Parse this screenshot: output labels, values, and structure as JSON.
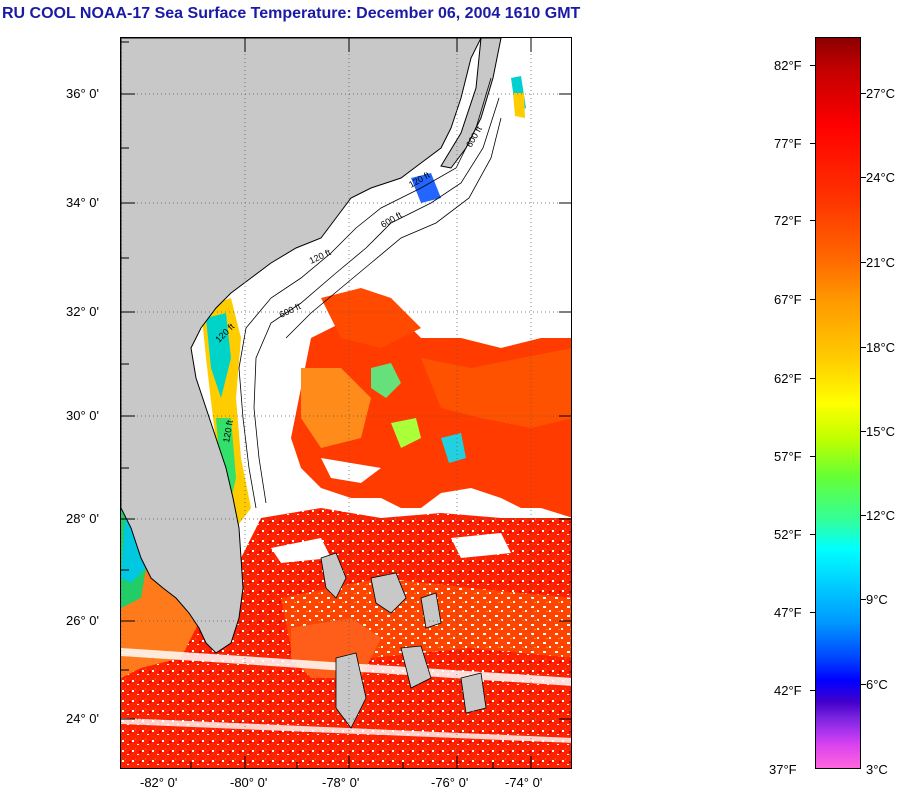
{
  "title": "RU COOL  NOAA-17  Sea Surface Temperature:  December 06, 2004 1610 GMT",
  "map": {
    "latitude_labels": [
      "36° 0'",
      "34° 0'",
      "32° 0'",
      "30° 0'",
      "28° 0'",
      "26° 0'",
      "24° 0'"
    ],
    "longitude_labels": [
      "-82° 0'",
      "-80° 0'",
      "-78° 0'",
      "-76° 0'",
      "-74° 0'"
    ],
    "isobath_labels": [
      "120 ft",
      "600 ft",
      "120 ft",
      "600 ft",
      "120 ft",
      "600 ft",
      "120 ft"
    ],
    "land_color": "#c8c8c8",
    "no_data_color": "#ffffff"
  },
  "colorbar": {
    "fahrenheit_labels": [
      "82°F",
      "77°F",
      "72°F",
      "67°F",
      "62°F",
      "57°F",
      "52°F",
      "47°F",
      "42°F",
      "37°F"
    ],
    "celsius_labels": [
      "27°C",
      "24°C",
      "21°C",
      "18°C",
      "15°C",
      "12°C",
      "9°C",
      "6°C",
      "3°C"
    ],
    "range_celsius": [
      3,
      29
    ],
    "colors_top_to_bottom": [
      "#8b0000",
      "#ff0000",
      "#ff6600",
      "#ffcc00",
      "#ffff00",
      "#66ff33",
      "#00ffff",
      "#0099ff",
      "#0000ff",
      "#7722dd",
      "#ff66dd"
    ]
  }
}
